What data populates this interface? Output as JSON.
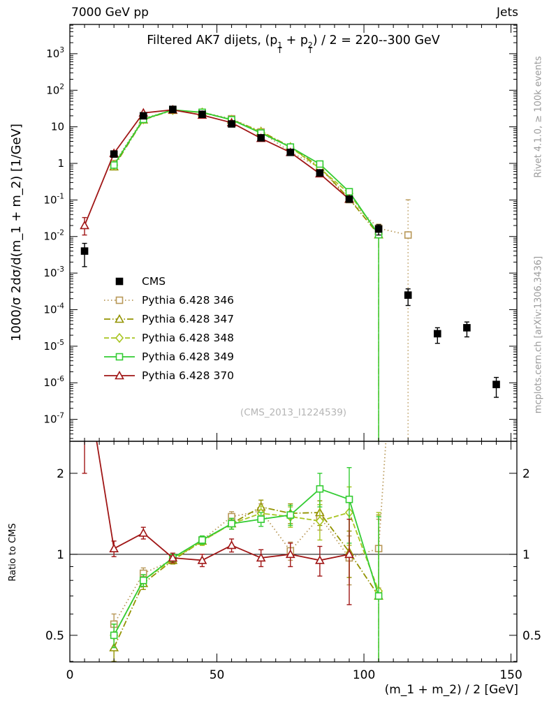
{
  "header": {
    "left": "7000 GeV pp",
    "right": "Jets"
  },
  "side_labels": {
    "top": "Rivet 4.1.0, ≥ 100k events",
    "bottom": "mcplots.cern.ch [arXiv:1306.3436]"
  },
  "watermark": "(CMS_2013_I1224539)",
  "axes": {
    "x_label": "(m_1 + m_2) / 2 [GeV]",
    "y_main_label": "1000/σ 2dσ/d(m_1 + m_2) [1/GeV]",
    "y_ratio_label": "Ratio to CMS"
  },
  "title_parts": [
    {
      "text": "Filtered AK7 dijets, (p"
    },
    {
      "stack": {
        "sup": "1",
        "sub": "T"
      }
    },
    {
      "text": " + p"
    },
    {
      "stack": {
        "sup": "2",
        "sub": "T"
      }
    },
    {
      "text": ") / 2 = 220--300 GeV"
    }
  ],
  "chart_data": {
    "type": "line",
    "title": "Filtered AK7 dijets, (p_T^1 + p_T^2) / 2 = 220--300 GeV",
    "xlabel": "(m_1 + m_2) / 2 [GeV]",
    "ylabel_main": "1000/σ 2dσ/d(m_1 + m_2) [1/GeV]",
    "ylabel_ratio": "Ratio to CMS",
    "x_range": [
      0,
      152
    ],
    "x_ticks": [
      0,
      50,
      100,
      150
    ],
    "x_minor_step": 5,
    "y_main_range_exp": [
      -7.6,
      3.8
    ],
    "y_main_exp_ticks": [
      3,
      2,
      1,
      0,
      -1,
      -2,
      -3,
      -4,
      -5,
      -6,
      -7
    ],
    "y_ratio_range_log": [
      -0.4,
      0.42
    ],
    "y_ratio_ticks": [
      0.5,
      1,
      2
    ],
    "y_ratio_minor_ticks": [
      0.4,
      0.6,
      0.7,
      0.8,
      0.9
    ],
    "ratio_reference": 1,
    "legend_position": "middle-left",
    "series": [
      {
        "name": "CMS",
        "color": "#000000",
        "marker": "square",
        "fill": "filled",
        "line": "none",
        "main": {
          "x": [
            5,
            15,
            25,
            35,
            45,
            55,
            65,
            75,
            85,
            95,
            105,
            115,
            125,
            135,
            145
          ],
          "y": [
            0.004,
            1.8,
            20,
            30,
            22,
            12,
            5,
            2,
            0.55,
            0.105,
            0.016,
            0.00025,
            2.2e-05,
            3.2e-05,
            9e-07
          ],
          "elo": [
            0.0025,
            0.25,
            1.5,
            2,
            1.5,
            0.9,
            0.4,
            0.15,
            0.05,
            0.012,
            0.005,
            0.00012,
            1e-05,
            1.4e-05,
            5e-07
          ],
          "ehi": [
            0.0025,
            0.25,
            1.5,
            2,
            1.5,
            0.9,
            0.4,
            0.15,
            0.05,
            0.012,
            0.005,
            0.00012,
            1e-05,
            1.4e-05,
            5e-07
          ]
        }
      },
      {
        "name": "Pythia 6.428 346",
        "color": "#b89858",
        "marker": "square",
        "fill": "open",
        "line": "dot",
        "main": {
          "x": [
            15,
            25,
            35,
            45,
            55,
            65,
            75,
            85,
            95,
            105,
            115
          ],
          "y": [
            0.99,
            17,
            28.5,
            24.9,
            16.6,
            7.25,
            2.05,
            0.76,
            0.102,
            0.0168,
            0.011
          ],
          "elo": [
            0.05,
            0.4,
            0.5,
            0.4,
            0.3,
            0.15,
            0.06,
            0.03,
            0.008,
            0.005,
            0.011
          ],
          "ehi": [
            0.05,
            0.4,
            0.5,
            0.4,
            0.3,
            0.15,
            0.06,
            0.03,
            0.008,
            0.005,
            0.09
          ]
        },
        "ratio": {
          "x": [
            15,
            25,
            35,
            45,
            55,
            65,
            75,
            85,
            95,
            105,
            115
          ],
          "y": [
            0.55,
            0.85,
            0.95,
            1.13,
            1.38,
            1.45,
            1.03,
            1.38,
            0.97,
            1.05,
            44
          ],
          "err": [
            0.05,
            0.04,
            0.03,
            0.04,
            0.06,
            0.09,
            0.08,
            0.15,
            0.2,
            0.3,
            20
          ]
        }
      },
      {
        "name": "Pythia 6.428 347",
        "color": "#939300",
        "marker": "triangle",
        "fill": "open",
        "line": "dashdot",
        "main": {
          "x": [
            15,
            25,
            35,
            45,
            55,
            65,
            75,
            85,
            95,
            105
          ],
          "y": [
            0.81,
            15.6,
            28.5,
            24.6,
            15.6,
            7.5,
            2.84,
            0.79,
            0.107,
            0.0112
          ],
          "elo": [
            0.05,
            0.4,
            0.5,
            0.4,
            0.3,
            0.15,
            0.07,
            0.03,
            0.009,
            0.0112
          ],
          "ehi": [
            0.05,
            0.4,
            0.5,
            0.4,
            0.3,
            0.15,
            0.07,
            0.03,
            0.009,
            0.004
          ]
        },
        "ratio": {
          "x": [
            15,
            25,
            35,
            45,
            55,
            65,
            75,
            85,
            95,
            105
          ],
          "y": [
            0.45,
            0.78,
            0.95,
            1.12,
            1.3,
            1.5,
            1.42,
            1.43,
            1.02,
            0.7
          ],
          "err": [
            0.05,
            0.04,
            0.03,
            0.04,
            0.06,
            0.09,
            0.12,
            0.15,
            0.2,
            0.7
          ]
        }
      },
      {
        "name": "Pythia 6.428 348",
        "color": "#a8c420",
        "marker": "diamond",
        "fill": "open",
        "line": "dash",
        "main": {
          "x": [
            15,
            25,
            35,
            45,
            55,
            65,
            75,
            85,
            95,
            105
          ],
          "y": [
            0.9,
            16,
            28.8,
            24.6,
            15.6,
            7.1,
            2.76,
            0.73,
            0.15,
            0.0117
          ],
          "elo": [
            0.05,
            0.4,
            0.5,
            0.4,
            0.3,
            0.15,
            0.07,
            0.03,
            0.012,
            0.0117
          ],
          "ehi": [
            0.05,
            0.4,
            0.5,
            0.4,
            0.3,
            0.15,
            0.07,
            0.03,
            0.012,
            0.004
          ]
        },
        "ratio": {
          "x": [
            15,
            25,
            35,
            45,
            55,
            65,
            75,
            85,
            95,
            105
          ],
          "y": [
            0.5,
            0.8,
            0.96,
            1.12,
            1.3,
            1.42,
            1.38,
            1.33,
            1.43,
            0.73
          ],
          "err": [
            0.05,
            0.04,
            0.03,
            0.04,
            0.06,
            0.09,
            0.12,
            0.2,
            0.35,
            0.7
          ]
        }
      },
      {
        "name": "Pythia 6.428 349",
        "color": "#33cc33",
        "marker": "square",
        "fill": "open",
        "line": "solid",
        "main": {
          "x": [
            15,
            25,
            35,
            45,
            55,
            65,
            75,
            85,
            95,
            105
          ],
          "y": [
            0.9,
            16,
            29.1,
            24.9,
            15.6,
            6.75,
            2.8,
            0.96,
            0.168,
            0.0112
          ],
          "elo": [
            0.05,
            0.4,
            0.5,
            0.4,
            0.3,
            0.15,
            0.08,
            0.06,
            0.025,
            0.0112
          ],
          "ehi": [
            0.05,
            0.4,
            0.5,
            0.4,
            0.3,
            0.15,
            0.08,
            0.06,
            0.025,
            0.005
          ]
        },
        "ratio": {
          "x": [
            15,
            25,
            35,
            45,
            55,
            65,
            75,
            85,
            95,
            105
          ],
          "y": [
            0.5,
            0.8,
            0.97,
            1.13,
            1.3,
            1.35,
            1.4,
            1.75,
            1.6,
            0.7
          ],
          "err": [
            0.05,
            0.04,
            0.03,
            0.04,
            0.06,
            0.08,
            0.12,
            0.25,
            0.5,
            0.68
          ]
        }
      },
      {
        "name": "Pythia 6.428 370",
        "color": "#a01616",
        "marker": "triangle",
        "fill": "open",
        "line": "solid",
        "main": {
          "x": [
            5,
            15,
            25,
            35,
            45,
            55,
            65,
            75,
            85,
            95
          ],
          "y": [
            0.02,
            1.89,
            24,
            29.1,
            20.9,
            13,
            4.85,
            2.0,
            0.52,
            0.105
          ],
          "elo": [
            0.009,
            0.08,
            0.5,
            0.5,
            0.4,
            0.3,
            0.12,
            0.06,
            0.02,
            0.01
          ],
          "ehi": [
            0.013,
            0.08,
            0.5,
            0.5,
            0.4,
            0.3,
            0.12,
            0.06,
            0.02,
            0.01
          ]
        },
        "ratio": {
          "x": [
            5,
            15,
            25,
            35,
            45,
            55,
            65,
            75,
            85,
            95
          ],
          "y": [
            5.0,
            1.05,
            1.2,
            0.97,
            0.95,
            1.08,
            0.97,
            1.0,
            0.95,
            1.0
          ],
          "err": [
            3.0,
            0.07,
            0.06,
            0.04,
            0.05,
            0.06,
            0.07,
            0.1,
            0.12,
            0.35
          ]
        }
      }
    ]
  }
}
